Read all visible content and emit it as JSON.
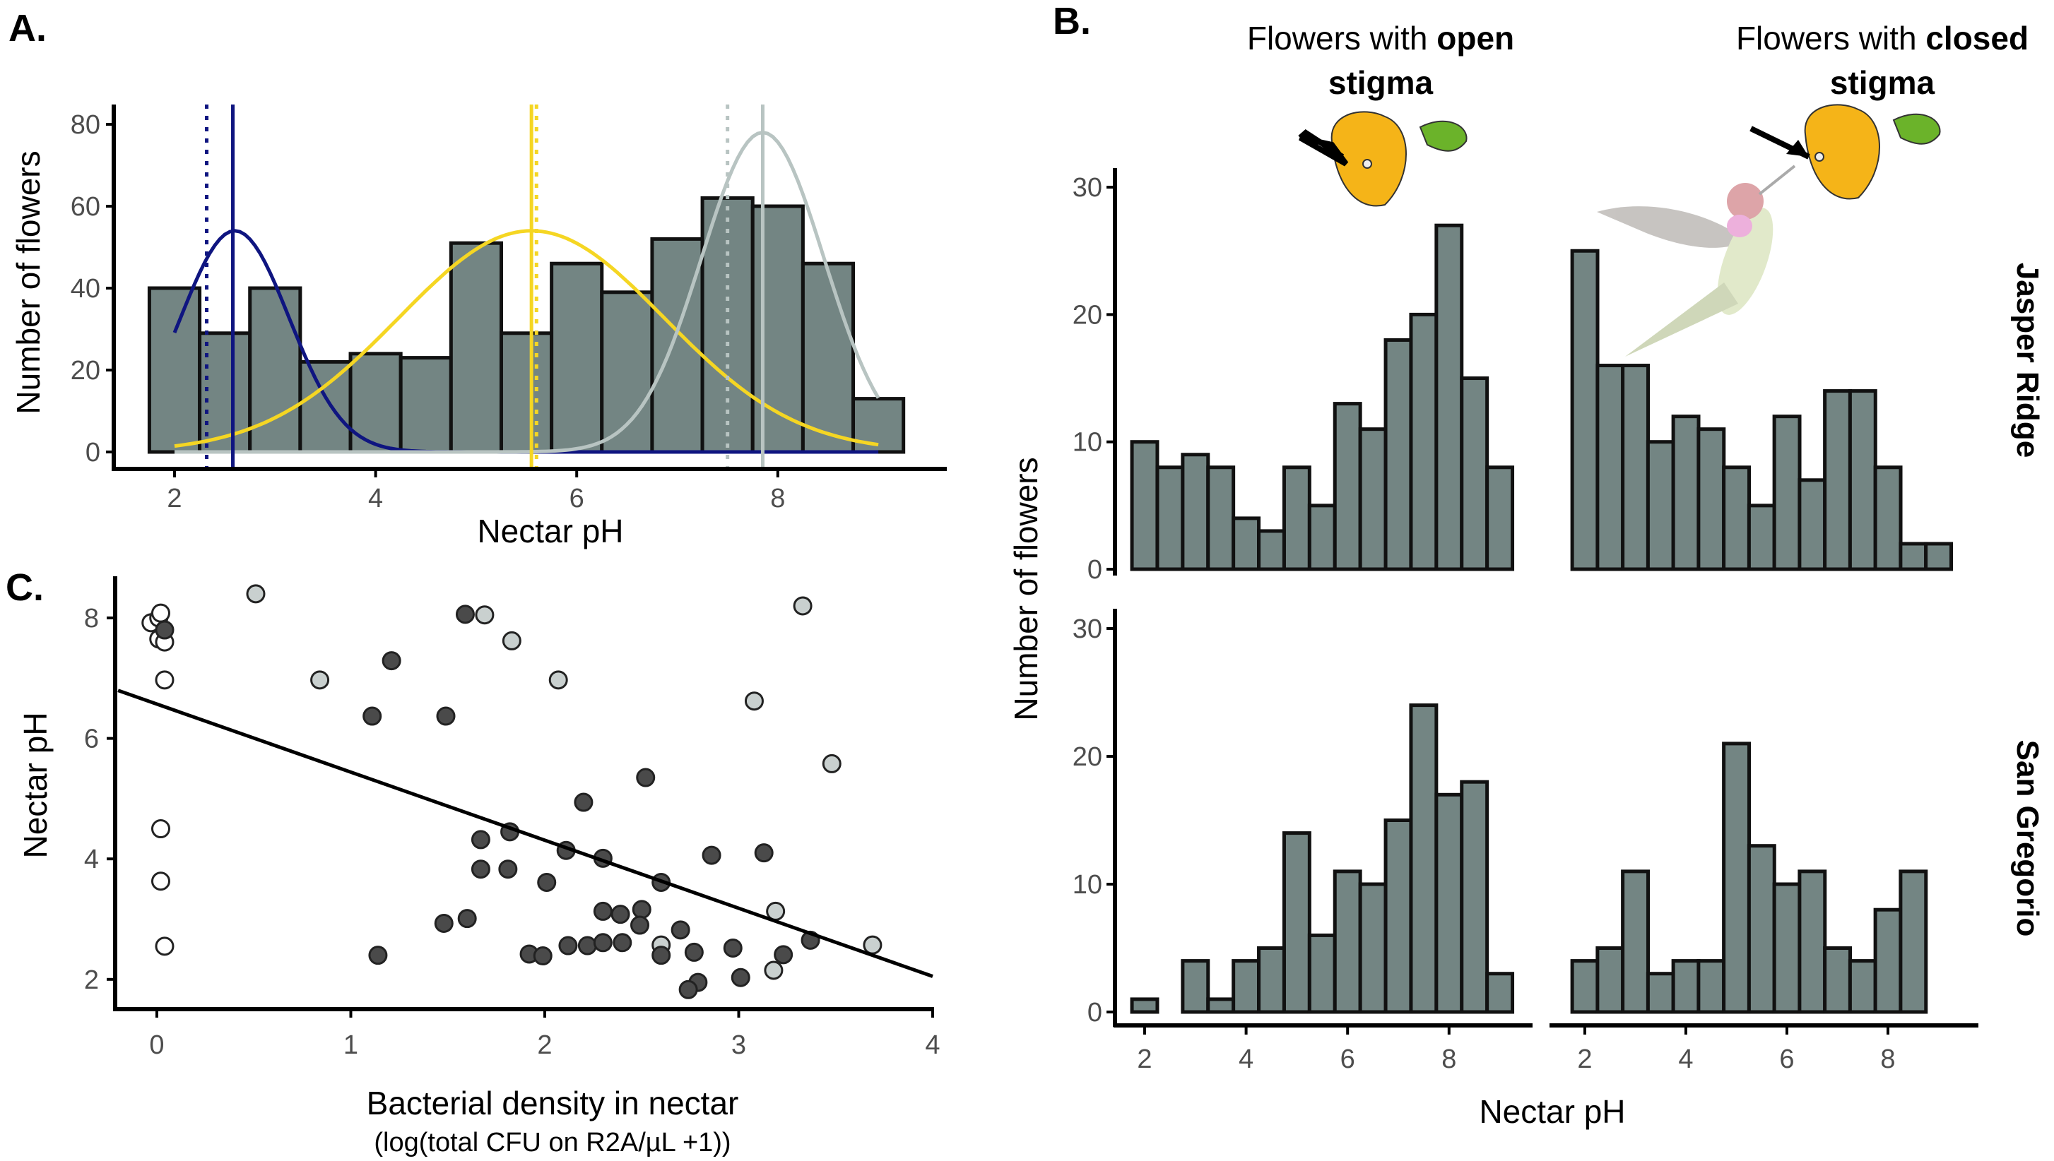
{
  "panels": {
    "a_label": "A.",
    "b_label": "B.",
    "c_label": "C."
  },
  "chart_data": [
    {
      "panel": "A",
      "type": "bar",
      "x": [
        2,
        2.5,
        3,
        3.5,
        4,
        4.5,
        5,
        5.5,
        6,
        6.5,
        7,
        7.5,
        8,
        8.5,
        9
      ],
      "values": [
        40,
        29,
        40,
        22,
        24,
        23,
        51,
        29,
        46,
        39,
        52,
        62,
        60,
        46,
        13
      ],
      "bin_width": 0.5,
      "xlabel": "Nectar pH",
      "ylabel": "Number of flowers",
      "xticks": [
        2,
        4,
        6,
        8
      ],
      "yticks": [
        0,
        20,
        40,
        60,
        80
      ],
      "bar_fill": "#738583",
      "fitted_curves": [
        {
          "color": "#0f1580",
          "mean": 2.6,
          "sd": 0.54,
          "peak": 54
        },
        {
          "color": "#f5d623",
          "mean": 5.55,
          "sd": 1.32,
          "peak": 54
        },
        {
          "color": "#b8c4c2",
          "mean": 7.85,
          "sd": 0.61,
          "peak": 78
        }
      ],
      "vlines": [
        {
          "color": "#0f1580",
          "x": 2.58,
          "style": "solid"
        },
        {
          "color": "#0f1580",
          "x": 2.32,
          "style": "dotted"
        },
        {
          "color": "#f5d623",
          "x": 5.55,
          "style": "solid"
        },
        {
          "color": "#f5d623",
          "x": 5.6,
          "style": "dotted"
        },
        {
          "color": "#b8c4c2",
          "x": 7.85,
          "style": "solid"
        },
        {
          "color": "#b8c4c2",
          "x": 7.5,
          "style": "dotted"
        }
      ],
      "grid": false
    },
    {
      "panel": "B",
      "type": "bar",
      "xlabel": "Nectar pH",
      "ylabel": "Number of flowers",
      "xticks": [
        2,
        4,
        6,
        8
      ],
      "yticks": [
        0,
        10,
        20,
        30
      ],
      "bin_width": 0.5,
      "bar_fill": "#738583",
      "columns": [
        {
          "line1_plain": "Flowers with ",
          "line1_bold": "open",
          "line2_bold": "stigma"
        },
        {
          "line1_plain": "Flowers with ",
          "line1_bold": "closed",
          "line2_bold": "stigma"
        }
      ],
      "rows": [
        "Jasper Ridge",
        "San Gregorio"
      ],
      "facets": [
        {
          "row": 0,
          "col": 0,
          "x": [
            2,
            2.5,
            3,
            3.5,
            4,
            4.5,
            5,
            5.5,
            6,
            6.5,
            7,
            7.5,
            8,
            8.5,
            9
          ],
          "values": [
            10,
            8,
            9,
            8,
            4,
            3,
            8,
            5,
            13,
            11,
            18,
            20,
            27,
            15,
            8
          ]
        },
        {
          "row": 0,
          "col": 1,
          "x": [
            2,
            2.5,
            3,
            3.5,
            4,
            4.5,
            5,
            5.5,
            6,
            6.5,
            7,
            7.5,
            8,
            8.5,
            9
          ],
          "values": [
            25,
            16,
            16,
            10,
            12,
            11,
            8,
            5,
            12,
            7,
            14,
            14,
            8,
            2,
            2
          ]
        },
        {
          "row": 1,
          "col": 0,
          "x": [
            2,
            2.5,
            3,
            3.5,
            4,
            4.5,
            5,
            5.5,
            6,
            6.5,
            7,
            7.5,
            8,
            8.5,
            9
          ],
          "values": [
            1,
            0,
            4,
            1,
            4,
            5,
            14,
            6,
            11,
            10,
            15,
            24,
            17,
            18,
            3
          ]
        },
        {
          "row": 1,
          "col": 1,
          "x": [
            2,
            2.5,
            3,
            3.5,
            4,
            4.5,
            5,
            5.5,
            6,
            6.5,
            7,
            7.5,
            8,
            8.5
          ],
          "values": [
            4,
            5,
            11,
            3,
            4,
            4,
            21,
            13,
            10,
            11,
            5,
            4,
            8,
            11
          ]
        }
      ],
      "grid": false
    },
    {
      "panel": "C",
      "type": "scatter",
      "xlabel": "Bacterial density in nectar",
      "xlabel_sub": "(log(total CFU on R2A/µL +1))",
      "ylabel": "Nectar pH",
      "xticks": [
        0,
        1,
        2,
        3,
        4
      ],
      "yticks": [
        2,
        4,
        6,
        8
      ],
      "regression": {
        "intercept": 6.57,
        "slope": -1.13,
        "x_range": [
          -0.2,
          4
        ]
      },
      "groups": [
        {
          "fill": "#ffffff",
          "points": [
            [
              -0.03,
              7.92
            ],
            [
              0.01,
              8.0
            ],
            [
              0.02,
              8.08
            ],
            [
              0.01,
              7.65
            ],
            [
              0.04,
              7.6
            ],
            [
              0.04,
              6.97
            ],
            [
              0.02,
              4.5
            ],
            [
              0.02,
              3.63
            ],
            [
              0.04,
              2.55
            ]
          ]
        },
        {
          "fill": "#c9d0cf",
          "points": [
            [
              0.51,
              8.4
            ],
            [
              1.69,
              8.05
            ],
            [
              1.83,
              7.62
            ],
            [
              0.84,
              6.97
            ],
            [
              2.07,
              6.97
            ],
            [
              3.08,
              6.62
            ],
            [
              3.33,
              8.2
            ],
            [
              3.48,
              5.58
            ],
            [
              3.19,
              3.13
            ],
            [
              2.6,
              2.57
            ],
            [
              3.18,
              2.15
            ],
            [
              3.69,
              2.57
            ]
          ]
        },
        {
          "fill": "#4a4a4a",
          "points": [
            [
              0.04,
              7.8
            ],
            [
              1.21,
              7.29
            ],
            [
              1.59,
              8.06
            ],
            [
              1.11,
              6.37
            ],
            [
              1.49,
              6.37
            ],
            [
              2.52,
              5.35
            ],
            [
              2.2,
              4.94
            ],
            [
              1.82,
              4.45
            ],
            [
              1.67,
              4.32
            ],
            [
              2.11,
              4.14
            ],
            [
              2.3,
              4.01
            ],
            [
              1.67,
              3.83
            ],
            [
              1.81,
              3.83
            ],
            [
              2.86,
              4.06
            ],
            [
              3.13,
              4.1
            ],
            [
              2.01,
              3.61
            ],
            [
              2.6,
              3.61
            ],
            [
              2.3,
              3.13
            ],
            [
              2.39,
              3.08
            ],
            [
              2.5,
              3.16
            ],
            [
              2.49,
              2.9
            ],
            [
              1.6,
              3.01
            ],
            [
              1.48,
              2.93
            ],
            [
              2.7,
              2.82
            ],
            [
              1.14,
              2.4
            ],
            [
              1.92,
              2.42
            ],
            [
              1.99,
              2.39
            ],
            [
              2.12,
              2.56
            ],
            [
              2.22,
              2.56
            ],
            [
              2.3,
              2.61
            ],
            [
              2.4,
              2.61
            ],
            [
              2.6,
              2.4
            ],
            [
              2.77,
              2.45
            ],
            [
              2.97,
              2.52
            ],
            [
              3.01,
              2.03
            ],
            [
              2.79,
              1.95
            ],
            [
              2.74,
              1.83
            ],
            [
              3.23,
              2.41
            ],
            [
              3.37,
              2.65
            ]
          ]
        }
      ],
      "grid": false
    }
  ]
}
